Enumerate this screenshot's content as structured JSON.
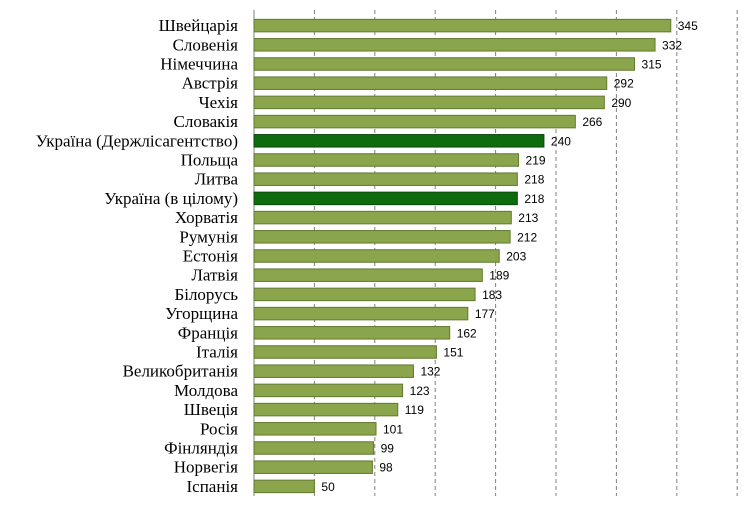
{
  "chart_data": {
    "type": "bar",
    "orientation": "horizontal",
    "categories": [
      "Швейцарія",
      "Словенія",
      "Німеччина",
      "Австрія",
      "Чехія",
      "Словакія",
      "Україна (Держлісагентство)",
      "Польща",
      "Литва",
      "Україна (в цілому)",
      "Хорватія",
      "Румунія",
      "Естонія",
      "Латвія",
      "Білорусь",
      "Угорщина",
      "Франція",
      "Італія",
      "Великобританія",
      "Молдова",
      "Швеція",
      "Росія",
      "Фінляндія",
      "Норвегія",
      "Іспанія"
    ],
    "values": [
      345,
      332,
      315,
      292,
      290,
      266,
      240,
      219,
      218,
      218,
      213,
      212,
      203,
      189,
      183,
      177,
      162,
      151,
      132,
      123,
      119,
      101,
      99,
      98,
      50
    ],
    "highlighted": [
      "Україна (Держлісагентство)",
      "Україна (в цілому)"
    ],
    "xlim": [
      0,
      400
    ],
    "grid": "vertical dashed",
    "data_labels": true,
    "legend": "none",
    "colors": {
      "bar": "#8aa54c",
      "bar_border": "#5f7a2c",
      "highlight": "#0e6b0e",
      "highlight_border": "#0a4a0a",
      "grid": "#808080"
    }
  }
}
